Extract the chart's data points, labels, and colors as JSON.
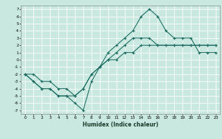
{
  "title": "",
  "xlabel": "Humidex (Indice chaleur)",
  "background_color": "#c8e8e0",
  "grid_color": "#ffffff",
  "line_color": "#1a6b60",
  "xlim": [
    -0.5,
    23.5
  ],
  "ylim": [
    -7.5,
    7.5
  ],
  "ytick_values": [
    -7,
    -6,
    -5,
    -4,
    -3,
    -2,
    -1,
    0,
    1,
    2,
    3,
    4,
    5,
    6,
    7
  ],
  "line1_x": [
    0,
    1,
    2,
    3,
    4,
    5,
    6,
    7,
    8,
    9,
    10,
    11,
    12,
    13,
    14,
    15,
    16,
    17,
    18,
    19,
    20,
    21,
    22,
    23
  ],
  "line1_y": [
    -2,
    -3,
    -4,
    -4,
    -5,
    -5,
    -6,
    -7,
    -3,
    -1,
    1,
    2,
    3,
    4,
    6,
    7,
    6,
    4,
    3,
    3,
    3,
    1,
    1,
    1
  ],
  "line2_x": [
    0,
    1,
    2,
    3,
    4,
    5,
    6,
    7,
    8,
    9,
    10,
    11,
    12,
    13,
    14,
    15,
    16,
    17,
    18,
    19,
    20,
    21,
    22,
    23
  ],
  "line2_y": [
    -2,
    -3,
    -4,
    -4,
    -5,
    -5,
    -5,
    -4,
    -2,
    -1,
    0,
    1,
    2,
    3,
    3,
    3,
    2,
    2,
    2,
    2,
    2,
    2,
    2,
    2
  ],
  "line3_x": [
    0,
    1,
    2,
    3,
    4,
    5,
    6,
    7,
    8,
    9,
    10,
    11,
    12,
    13,
    14,
    15,
    16,
    17,
    18,
    19,
    20,
    21,
    22,
    23
  ],
  "line3_y": [
    -2,
    -2,
    -3,
    -3,
    -4,
    -4,
    -5,
    -4,
    -2,
    -1,
    0,
    0,
    1,
    1,
    2,
    2,
    2,
    2,
    2,
    2,
    2,
    2,
    2,
    2
  ]
}
